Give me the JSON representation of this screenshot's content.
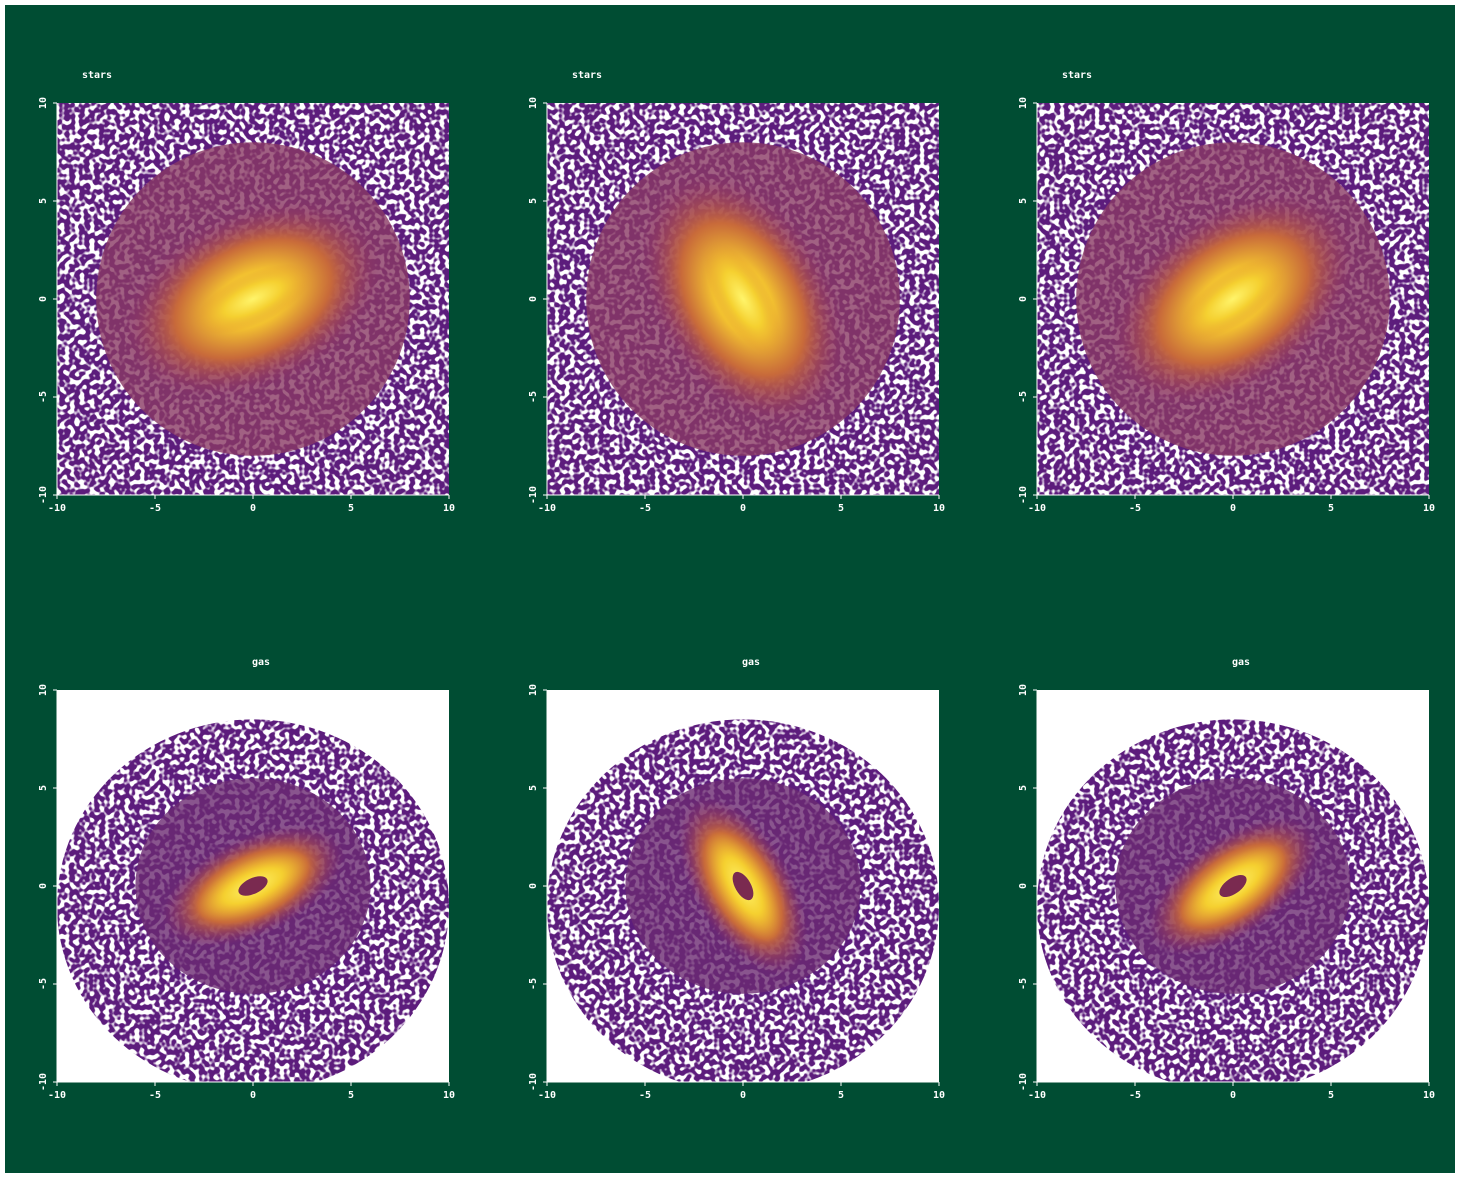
{
  "chart_data": [
    {
      "type": "density",
      "title": "stars",
      "xlim": [
        -10,
        10
      ],
      "ylim": [
        -10,
        10
      ],
      "xticks": [
        -10,
        -5,
        0,
        5,
        10
      ],
      "yticks": [
        -10,
        -5,
        0,
        5,
        10
      ]
    },
    {
      "type": "density",
      "title": "stars",
      "xlim": [
        -10,
        10
      ],
      "ylim": [
        -10,
        10
      ],
      "xticks": [
        -10,
        -5,
        0,
        5,
        10
      ],
      "yticks": [
        -10,
        -5,
        0,
        5,
        10
      ]
    },
    {
      "type": "density",
      "title": "stars",
      "xlim": [
        -10,
        10
      ],
      "ylim": [
        -10,
        10
      ],
      "xticks": [
        -10,
        -5,
        0,
        5,
        10
      ],
      "yticks": [
        -10,
        -5,
        0,
        5,
        10
      ]
    },
    {
      "type": "density",
      "title": "gas",
      "xlim": [
        -10,
        10
      ],
      "ylim": [
        -10,
        10
      ],
      "xticks": [
        -10,
        -5,
        0,
        5,
        10
      ],
      "yticks": [
        -10,
        -5,
        0,
        5,
        10
      ]
    },
    {
      "type": "density",
      "title": "gas",
      "xlim": [
        -10,
        10
      ],
      "ylim": [
        -10,
        10
      ],
      "xticks": [
        -10,
        -5,
        0,
        5,
        10
      ],
      "yticks": [
        -10,
        -5,
        0,
        5,
        10
      ]
    },
    {
      "type": "density",
      "title": "gas",
      "xlim": [
        -10,
        10
      ],
      "ylim": [
        -10,
        10
      ],
      "xticks": [
        -10,
        -5,
        0,
        5,
        10
      ],
      "yticks": [
        -10,
        -5,
        0,
        5,
        10
      ]
    }
  ]
}
